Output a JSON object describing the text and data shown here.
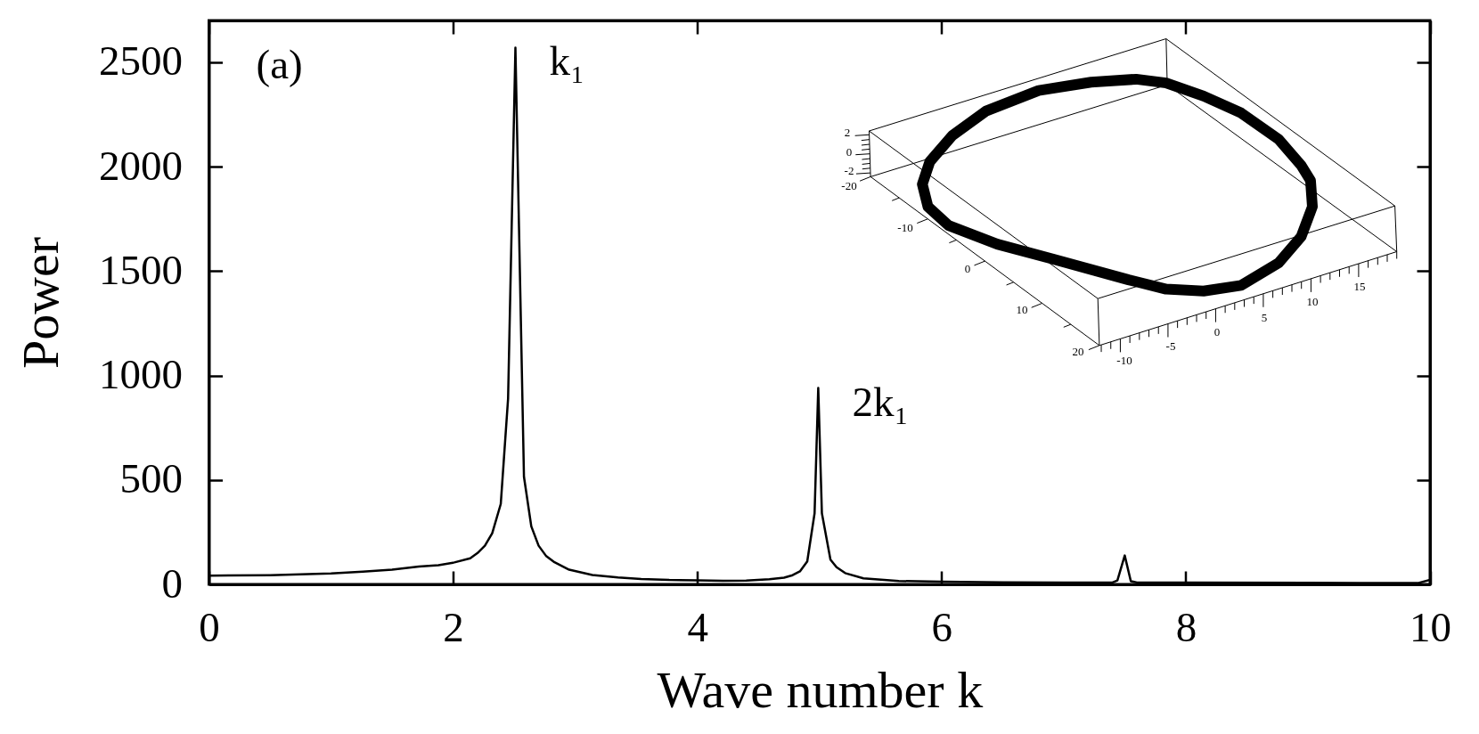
{
  "chart_data": [
    {
      "type": "line",
      "xlabel": "Wave number k",
      "ylabel": "Power",
      "color": "#000000",
      "x": [
        0,
        0.5,
        1.0,
        1.26,
        1.5,
        1.72,
        1.88,
        2.01,
        2.14,
        2.2,
        2.26,
        2.32,
        2.39,
        2.45,
        2.51,
        2.58,
        2.64,
        2.7,
        2.76,
        2.83,
        2.95,
        3.14,
        3.35,
        3.54,
        3.77,
        4.0,
        4.21,
        4.4,
        4.59,
        4.71,
        4.78,
        4.84,
        4.9,
        4.96,
        4.99,
        5.02,
        5.09,
        5.14,
        5.21,
        5.36,
        5.65,
        6.0,
        6.5,
        7.0,
        7.4,
        7.44,
        7.5,
        7.55,
        7.6,
        8.0,
        9.0,
        9.9,
        10.0
      ],
      "values": [
        42,
        44,
        52,
        61,
        70,
        85,
        92,
        105,
        125,
        150,
        185,
        245,
        385,
        890,
        2570,
        515,
        278,
        185,
        137,
        106,
        70,
        45,
        33,
        26,
        21,
        19,
        17,
        18,
        25,
        32,
        44,
        62,
        110,
        340,
        940,
        340,
        118,
        82,
        54,
        29,
        16,
        13,
        10,
        9,
        9,
        19,
        138,
        15,
        9,
        8,
        7,
        6,
        22
      ],
      "xlim": [
        0,
        10
      ],
      "xticks": [
        0,
        2,
        4,
        6,
        8,
        10
      ],
      "ylim": [
        0,
        2700
      ],
      "yticks": [
        0,
        500,
        1000,
        1500,
        2000,
        2500
      ],
      "annotations": [
        "(a)",
        {
          "text": "k₁",
          "x": 2.51,
          "y": 2570
        },
        {
          "text": "2k₁",
          "x": 4.99,
          "y": 940
        }
      ]
    },
    {
      "type": "other",
      "annotations": [
        "2",
        "0",
        "-2",
        "-20",
        "-10",
        "0",
        "10",
        "20",
        "-10",
        "-5",
        "0",
        "5",
        "10",
        "15"
      ]
    }
  ]
}
